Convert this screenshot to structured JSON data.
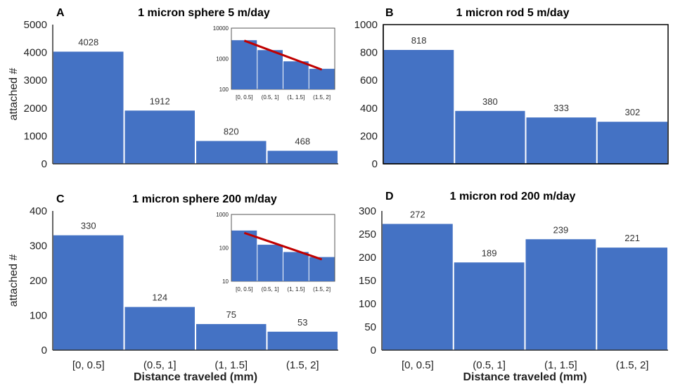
{
  "colors": {
    "bar": "#4472C4",
    "trend": "#C00000",
    "axis": "#333333"
  },
  "chart_data": [
    {
      "panel": "A",
      "type": "bar",
      "title": "1 micron sphere 5 m/day",
      "ylabel": "attached #",
      "xlabel": "",
      "categories": [
        "[0, 0.5]",
        "(0.5, 1]",
        "(1, 1.5]",
        "(1.5, 2]"
      ],
      "values": [
        4028,
        1912,
        820,
        468
      ],
      "data_labels": [
        "4028",
        "1912",
        "820",
        "468"
      ],
      "ylim": [
        0,
        5000
      ],
      "yticks": [
        "0",
        "1000",
        "2000",
        "3000",
        "4000",
        "5000"
      ],
      "show_x_tick_labels": false,
      "inset": {
        "scale": "log",
        "ylim": [
          100,
          10000
        ],
        "yticks": [
          "100",
          "1000",
          "10000"
        ],
        "categories": [
          "[0, 0.5]",
          "(0.5, 1]",
          "(1, 1.5]",
          "(1.5, 2]"
        ],
        "trend": [
          3900,
          440
        ]
      }
    },
    {
      "panel": "B",
      "type": "bar",
      "title": "1 micron rod 5 m/day",
      "ylabel": "",
      "xlabel": "",
      "categories": [
        "[0, 0.5]",
        "(0.5, 1]",
        "(1, 1.5]",
        "(1.5, 2]"
      ],
      "values": [
        818,
        380,
        333,
        302
      ],
      "data_labels": [
        "818",
        "380",
        "333",
        "302"
      ],
      "ylim": [
        0,
        1000
      ],
      "yticks": [
        "0",
        "200",
        "400",
        "600",
        "800",
        "1000"
      ],
      "show_x_tick_labels": false
    },
    {
      "panel": "C",
      "type": "bar",
      "title": "1 micron sphere 200 m/day",
      "ylabel": "attached #",
      "xlabel": "Distance traveled (mm)",
      "categories": [
        "[0, 0.5]",
        "(0.5, 1]",
        "(1, 1.5]",
        "(1.5, 2]"
      ],
      "values": [
        330,
        124,
        75,
        53
      ],
      "data_labels": [
        "330",
        "124",
        "75",
        "53"
      ],
      "ylim": [
        0,
        400
      ],
      "yticks": [
        "0",
        "100",
        "200",
        "300",
        "400"
      ],
      "show_x_tick_labels": true,
      "inset": {
        "scale": "log",
        "ylim": [
          10,
          1000
        ],
        "yticks": [
          "10",
          "100",
          "1000"
        ],
        "categories": [
          "[0, 0.5]",
          "(0.5, 1]",
          "(1, 1.5]",
          "(1.5, 2]"
        ],
        "trend": [
          280,
          45
        ]
      }
    },
    {
      "panel": "D",
      "type": "bar",
      "title": "1 micron rod 200 m/day",
      "ylabel": "",
      "xlabel": "Distance traveled (mm)",
      "categories": [
        "[0, 0.5]",
        "(0.5, 1]",
        "(1, 1.5]",
        "(1.5, 2]"
      ],
      "values": [
        272,
        189,
        239,
        221
      ],
      "data_labels": [
        "272",
        "189",
        "239",
        "221"
      ],
      "ylim": [
        0,
        300
      ],
      "yticks": [
        "0",
        "50",
        "100",
        "150",
        "200",
        "250",
        "300"
      ],
      "show_x_tick_labels": true
    }
  ]
}
